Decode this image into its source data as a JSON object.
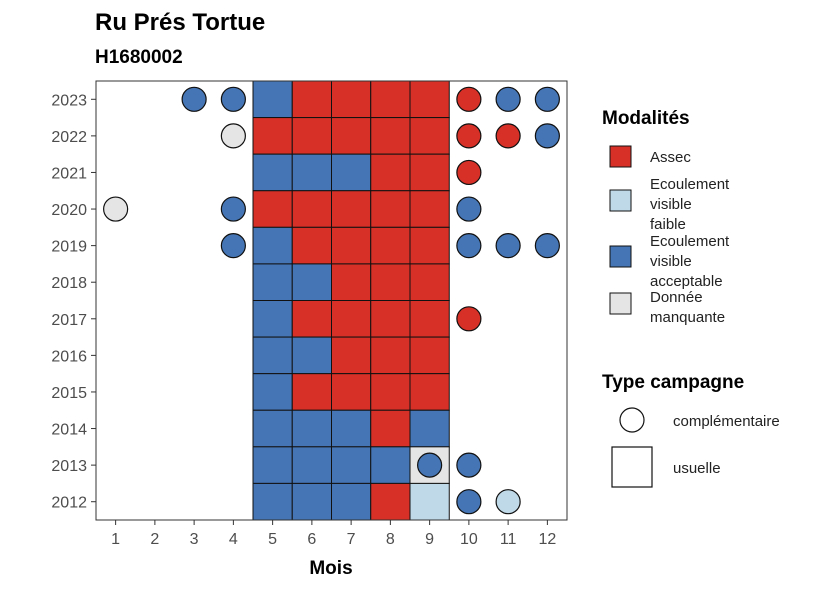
{
  "chart_data": {
    "type": "heatmap",
    "title": "Ru Prés Tortue",
    "subtitle": "H1680002",
    "xlabel": "Mois",
    "ylabel": "",
    "x_categories": [
      "1",
      "2",
      "3",
      "4",
      "5",
      "6",
      "7",
      "8",
      "9",
      "10",
      "11",
      "12"
    ],
    "y_categories": [
      "2012",
      "2013",
      "2014",
      "2015",
      "2016",
      "2017",
      "2018",
      "2019",
      "2020",
      "2021",
      "2022",
      "2023"
    ],
    "colors": {
      "Assec": "#d73027",
      "Ecoulement visible faible": "#c0d9e8",
      "Ecoulement visible acceptable": "#4575b4",
      "Donnée manquante": "#e5e5e5"
    },
    "legend_modalites": {
      "title": "Modalités",
      "items": [
        {
          "key": "Assec",
          "label_lines": [
            "Assec"
          ]
        },
        {
          "key": "Ecoulement visible faible",
          "label_lines": [
            "Ecoulement",
            "visible",
            "faible"
          ]
        },
        {
          "key": "Ecoulement visible acceptable",
          "label_lines": [
            "Ecoulement",
            "visible",
            "acceptable"
          ]
        },
        {
          "key": "Donnée manquante",
          "label_lines": [
            "Donnée",
            "manquante"
          ]
        }
      ]
    },
    "legend_type": {
      "title": "Type campagne",
      "items": [
        {
          "shape": "circle",
          "label": "complémentaire"
        },
        {
          "shape": "square",
          "label": "usuelle"
        }
      ]
    },
    "usuelle": [
      {
        "year": "2023",
        "month": 5,
        "value": "Ecoulement visible acceptable"
      },
      {
        "year": "2023",
        "month": 6,
        "value": "Assec"
      },
      {
        "year": "2023",
        "month": 7,
        "value": "Assec"
      },
      {
        "year": "2023",
        "month": 8,
        "value": "Assec"
      },
      {
        "year": "2023",
        "month": 9,
        "value": "Assec"
      },
      {
        "year": "2022",
        "month": 5,
        "value": "Assec"
      },
      {
        "year": "2022",
        "month": 6,
        "value": "Assec"
      },
      {
        "year": "2022",
        "month": 7,
        "value": "Assec"
      },
      {
        "year": "2022",
        "month": 8,
        "value": "Assec"
      },
      {
        "year": "2022",
        "month": 9,
        "value": "Assec"
      },
      {
        "year": "2021",
        "month": 5,
        "value": "Ecoulement visible acceptable"
      },
      {
        "year": "2021",
        "month": 6,
        "value": "Ecoulement visible acceptable"
      },
      {
        "year": "2021",
        "month": 7,
        "value": "Ecoulement visible acceptable"
      },
      {
        "year": "2021",
        "month": 8,
        "value": "Assec"
      },
      {
        "year": "2021",
        "month": 9,
        "value": "Assec"
      },
      {
        "year": "2020",
        "month": 5,
        "value": "Assec"
      },
      {
        "year": "2020",
        "month": 6,
        "value": "Assec"
      },
      {
        "year": "2020",
        "month": 7,
        "value": "Assec"
      },
      {
        "year": "2020",
        "month": 8,
        "value": "Assec"
      },
      {
        "year": "2020",
        "month": 9,
        "value": "Assec"
      },
      {
        "year": "2019",
        "month": 5,
        "value": "Ecoulement visible acceptable"
      },
      {
        "year": "2019",
        "month": 6,
        "value": "Assec"
      },
      {
        "year": "2019",
        "month": 7,
        "value": "Assec"
      },
      {
        "year": "2019",
        "month": 8,
        "value": "Assec"
      },
      {
        "year": "2019",
        "month": 9,
        "value": "Assec"
      },
      {
        "year": "2018",
        "month": 5,
        "value": "Ecoulement visible acceptable"
      },
      {
        "year": "2018",
        "month": 6,
        "value": "Ecoulement visible acceptable"
      },
      {
        "year": "2018",
        "month": 7,
        "value": "Assec"
      },
      {
        "year": "2018",
        "month": 8,
        "value": "Assec"
      },
      {
        "year": "2018",
        "month": 9,
        "value": "Assec"
      },
      {
        "year": "2017",
        "month": 5,
        "value": "Ecoulement visible acceptable"
      },
      {
        "year": "2017",
        "month": 6,
        "value": "Assec"
      },
      {
        "year": "2017",
        "month": 7,
        "value": "Assec"
      },
      {
        "year": "2017",
        "month": 8,
        "value": "Assec"
      },
      {
        "year": "2017",
        "month": 9,
        "value": "Assec"
      },
      {
        "year": "2016",
        "month": 5,
        "value": "Ecoulement visible acceptable"
      },
      {
        "year": "2016",
        "month": 6,
        "value": "Ecoulement visible acceptable"
      },
      {
        "year": "2016",
        "month": 7,
        "value": "Assec"
      },
      {
        "year": "2016",
        "month": 8,
        "value": "Assec"
      },
      {
        "year": "2016",
        "month": 9,
        "value": "Assec"
      },
      {
        "year": "2015",
        "month": 5,
        "value": "Ecoulement visible acceptable"
      },
      {
        "year": "2015",
        "month": 6,
        "value": "Assec"
      },
      {
        "year": "2015",
        "month": 7,
        "value": "Assec"
      },
      {
        "year": "2015",
        "month": 8,
        "value": "Assec"
      },
      {
        "year": "2015",
        "month": 9,
        "value": "Assec"
      },
      {
        "year": "2014",
        "month": 5,
        "value": "Ecoulement visible acceptable"
      },
      {
        "year": "2014",
        "month": 6,
        "value": "Ecoulement visible acceptable"
      },
      {
        "year": "2014",
        "month": 7,
        "value": "Ecoulement visible acceptable"
      },
      {
        "year": "2014",
        "month": 8,
        "value": "Assec"
      },
      {
        "year": "2014",
        "month": 9,
        "value": "Ecoulement visible acceptable"
      },
      {
        "year": "2013",
        "month": 5,
        "value": "Ecoulement visible acceptable"
      },
      {
        "year": "2013",
        "month": 6,
        "value": "Ecoulement visible acceptable"
      },
      {
        "year": "2013",
        "month": 7,
        "value": "Ecoulement visible acceptable"
      },
      {
        "year": "2013",
        "month": 8,
        "value": "Ecoulement visible acceptable"
      },
      {
        "year": "2013",
        "month": 9,
        "value": "Donnée manquante"
      },
      {
        "year": "2012",
        "month": 5,
        "value": "Ecoulement visible acceptable"
      },
      {
        "year": "2012",
        "month": 6,
        "value": "Ecoulement visible acceptable"
      },
      {
        "year": "2012",
        "month": 7,
        "value": "Ecoulement visible acceptable"
      },
      {
        "year": "2012",
        "month": 8,
        "value": "Assec"
      },
      {
        "year": "2012",
        "month": 9,
        "value": "Ecoulement visible faible"
      }
    ],
    "complementaire": [
      {
        "year": "2023",
        "month": 3,
        "value": "Ecoulement visible acceptable"
      },
      {
        "year": "2023",
        "month": 4,
        "value": "Ecoulement visible acceptable"
      },
      {
        "year": "2023",
        "month": 10,
        "value": "Assec"
      },
      {
        "year": "2023",
        "month": 11,
        "value": "Ecoulement visible acceptable"
      },
      {
        "year": "2023",
        "month": 12,
        "value": "Ecoulement visible acceptable"
      },
      {
        "year": "2022",
        "month": 4,
        "value": "Donnée manquante"
      },
      {
        "year": "2022",
        "month": 10,
        "value": "Assec"
      },
      {
        "year": "2022",
        "month": 11,
        "value": "Assec"
      },
      {
        "year": "2022",
        "month": 12,
        "value": "Ecoulement visible acceptable"
      },
      {
        "year": "2021",
        "month": 10,
        "value": "Assec"
      },
      {
        "year": "2020",
        "month": 1,
        "value": "Donnée manquante"
      },
      {
        "year": "2020",
        "month": 4,
        "value": "Ecoulement visible acceptable"
      },
      {
        "year": "2020",
        "month": 10,
        "value": "Ecoulement visible acceptable"
      },
      {
        "year": "2019",
        "month": 4,
        "value": "Ecoulement visible acceptable"
      },
      {
        "year": "2019",
        "month": 10,
        "value": "Ecoulement visible acceptable"
      },
      {
        "year": "2019",
        "month": 11,
        "value": "Ecoulement visible acceptable"
      },
      {
        "year": "2019",
        "month": 12,
        "value": "Ecoulement visible acceptable"
      },
      {
        "year": "2017",
        "month": 10,
        "value": "Assec"
      },
      {
        "year": "2013",
        "month": 9,
        "value": "Ecoulement visible acceptable"
      },
      {
        "year": "2013",
        "month": 10,
        "value": "Ecoulement visible acceptable"
      },
      {
        "year": "2012",
        "month": 10,
        "value": "Ecoulement visible acceptable"
      },
      {
        "year": "2012",
        "month": 11,
        "value": "Ecoulement visible faible"
      }
    ]
  }
}
